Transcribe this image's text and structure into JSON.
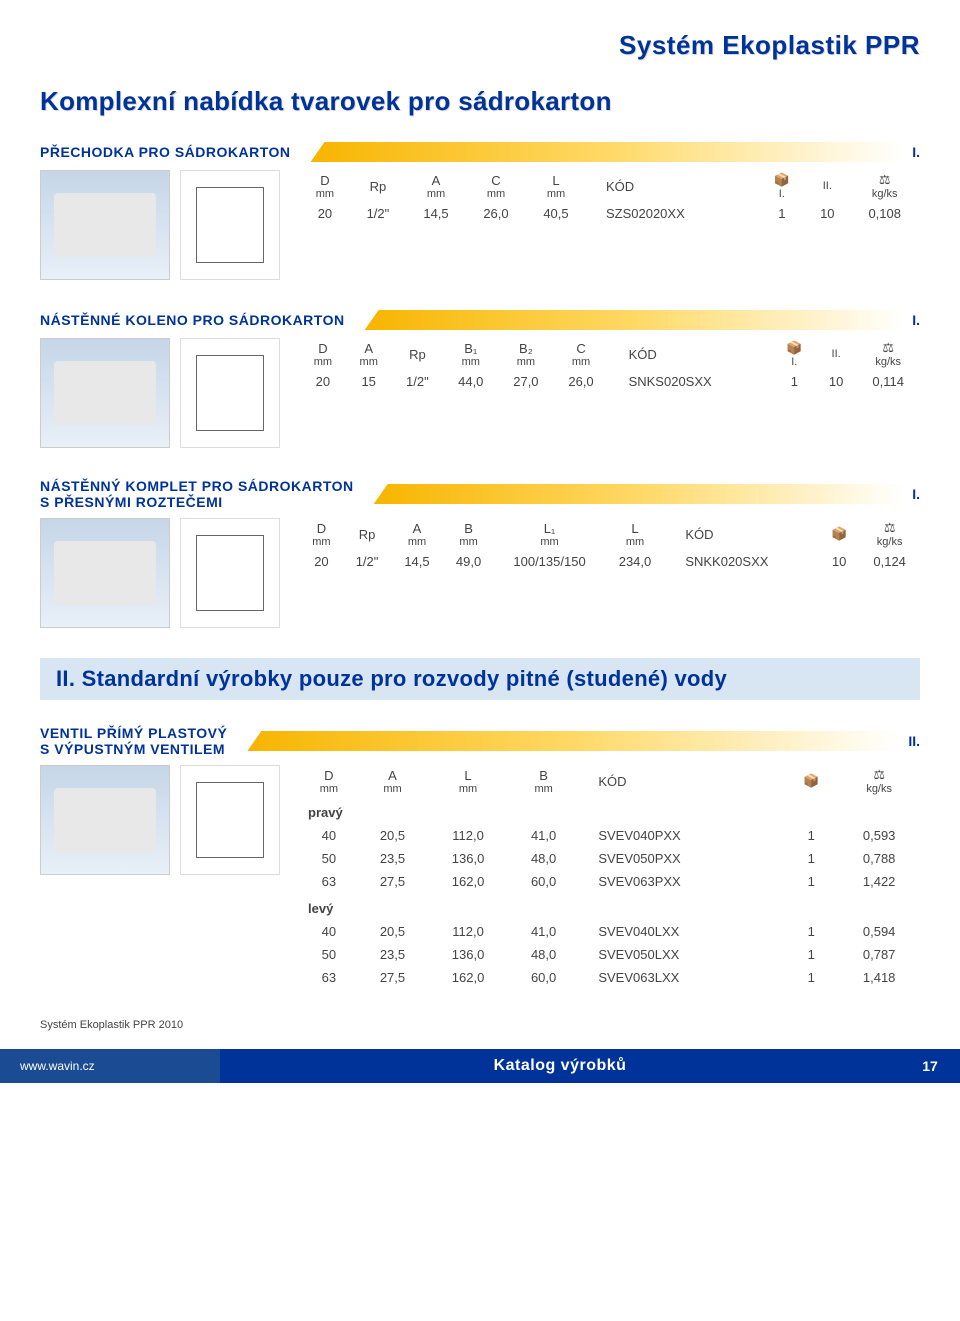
{
  "brand_title": "Systém Ekoplastik PPR",
  "main_title": "Komplexní nabídka tvarovek pro sádrokarton",
  "section2_title": "II. Standardní výrobky pouze pro rozvody pitné (studené) vody",
  "footer_note": "Systém Ekoplastik PPR 2010",
  "footer_url": "www.wavin.cz",
  "footer_catalog": "Katalog výrobků",
  "footer_page": "17",
  "products": {
    "p1": {
      "title": "PŘECHODKA PRO SÁDROKARTON",
      "class": "I.",
      "headers": [
        "D",
        "Rp",
        "A",
        "C",
        "L",
        "KÓD",
        "📦",
        "📦",
        "⚖"
      ],
      "units": [
        "mm",
        "",
        "mm",
        "mm",
        "mm",
        "",
        "I.",
        "II.",
        "kg/ks"
      ],
      "row": [
        "20",
        "1/2\"",
        "14,5",
        "26,0",
        "40,5",
        "SZS02020XX",
        "1",
        "10",
        "0,108"
      ]
    },
    "p2": {
      "title": "NÁSTĚNNÉ KOLENO PRO SÁDROKARTON",
      "class": "I.",
      "headers": [
        "D",
        "A",
        "Rp",
        "B₁",
        "B₂",
        "C",
        "KÓD",
        "📦",
        "📦",
        "⚖"
      ],
      "units": [
        "mm",
        "mm",
        "",
        "mm",
        "mm",
        "mm",
        "",
        "I.",
        "II.",
        "kg/ks"
      ],
      "row": [
        "20",
        "15",
        "1/2\"",
        "44,0",
        "27,0",
        "26,0",
        "SNKS020SXX",
        "1",
        "10",
        "0,114"
      ]
    },
    "p3": {
      "title": "NÁSTĚNNÝ KOMPLET PRO SÁDROKARTON\nS PŘESNÝMI ROZTEČEMI",
      "class": "I.",
      "headers": [
        "D",
        "Rp",
        "A",
        "B",
        "L₁",
        "L",
        "KÓD",
        "📦",
        "⚖"
      ],
      "units": [
        "mm",
        "",
        "mm",
        "mm",
        "mm",
        "mm",
        "",
        "",
        "kg/ks"
      ],
      "row": [
        "20",
        "1/2\"",
        "14,5",
        "49,0",
        "100/135/150",
        "234,0",
        "SNKK020SXX",
        "10",
        "0,124"
      ]
    },
    "p4": {
      "title": "VENTIL PŘÍMÝ PLASTOVÝ\nS VÝPUSTNÝM VENTILEM",
      "class": "II.",
      "headers": [
        "D",
        "A",
        "L",
        "B",
        "KÓD",
        "📦",
        "⚖"
      ],
      "units": [
        "mm",
        "mm",
        "mm",
        "mm",
        "",
        "",
        "kg/ks"
      ],
      "variant1_label": "pravý",
      "variant1_rows": [
        [
          "40",
          "20,5",
          "112,0",
          "41,0",
          "SVEV040PXX",
          "1",
          "0,593"
        ],
        [
          "50",
          "23,5",
          "136,0",
          "48,0",
          "SVEV050PXX",
          "1",
          "0,788"
        ],
        [
          "63",
          "27,5",
          "162,0",
          "60,0",
          "SVEV063PXX",
          "1",
          "1,422"
        ]
      ],
      "variant2_label": "levý",
      "variant2_rows": [
        [
          "40",
          "20,5",
          "112,0",
          "41,0",
          "SVEV040LXX",
          "1",
          "0,594"
        ],
        [
          "50",
          "23,5",
          "136,0",
          "48,0",
          "SVEV050LXX",
          "1",
          "0,787"
        ],
        [
          "63",
          "27,5",
          "162,0",
          "60,0",
          "SVEV063LXX",
          "1",
          "1,418"
        ]
      ]
    }
  },
  "colors": {
    "brand_blue": "#003399",
    "header_bg": "#d8e6f3",
    "accent_gold": "#f7b500",
    "footer_bg": "#003399",
    "footer_left_bg": "#1b4b92",
    "variant_red": "#d9534f"
  }
}
